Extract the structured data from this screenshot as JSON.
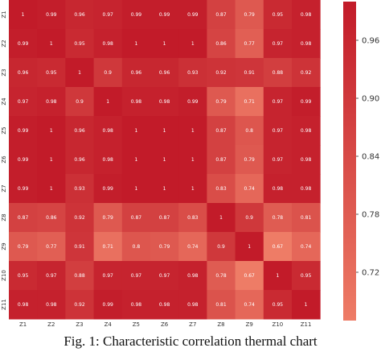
{
  "caption": "Fig. 1: Characteristic correlation thermal chart",
  "colors": {
    "low": "#ee7c66",
    "high": "#c21b29",
    "text_dark_bg": "#ffffff"
  },
  "chart_data": {
    "type": "heatmap",
    "title": "",
    "xlabel": "",
    "ylabel": "",
    "x_categories": [
      "Z1",
      "Z2",
      "Z3",
      "Z4",
      "Z5",
      "Z6",
      "Z7",
      "Z8",
      "Z9",
      "Z10",
      "Z11"
    ],
    "y_categories": [
      "Z1",
      "Z2",
      "Z3",
      "Z4",
      "Z5",
      "Z6",
      "Z7",
      "Z8",
      "Z9",
      "Z10",
      "Z11"
    ],
    "values": [
      [
        1,
        0.99,
        0.96,
        0.97,
        0.99,
        0.99,
        0.99,
        0.87,
        0.79,
        0.95,
        0.98
      ],
      [
        0.99,
        1,
        0.95,
        0.98,
        1,
        1,
        1,
        0.86,
        0.77,
        0.97,
        0.98
      ],
      [
        0.96,
        0.95,
        1,
        0.9,
        0.96,
        0.96,
        0.93,
        0.92,
        0.91,
        0.88,
        0.92
      ],
      [
        0.97,
        0.98,
        0.9,
        1,
        0.98,
        0.98,
        0.99,
        0.79,
        0.71,
        0.97,
        0.99
      ],
      [
        0.99,
        1,
        0.96,
        0.98,
        1,
        1,
        1,
        0.87,
        0.8,
        0.97,
        0.98
      ],
      [
        0.99,
        1,
        0.96,
        0.98,
        1,
        1,
        1,
        0.87,
        0.79,
        0.97,
        0.98
      ],
      [
        0.99,
        1,
        0.93,
        0.99,
        1,
        1,
        1,
        0.83,
        0.74,
        0.98,
        0.98
      ],
      [
        0.87,
        0.86,
        0.92,
        0.79,
        0.87,
        0.87,
        0.83,
        1,
        0.9,
        0.78,
        0.81
      ],
      [
        0.79,
        0.77,
        0.91,
        0.71,
        0.8,
        0.79,
        0.74,
        0.9,
        1,
        0.67,
        0.74
      ],
      [
        0.95,
        0.97,
        0.88,
        0.97,
        0.97,
        0.97,
        0.98,
        0.78,
        0.67,
        1,
        0.95
      ],
      [
        0.98,
        0.98,
        0.92,
        0.99,
        0.98,
        0.98,
        0.98,
        0.81,
        0.74,
        0.95,
        1
      ]
    ],
    "cell_labels": [
      [
        "1",
        "0.99",
        "0.96",
        "0.97",
        "0.99",
        "0.99",
        "0.99",
        "0.87",
        "0.79",
        "0.95",
        "0.98"
      ],
      [
        "0.99",
        "1",
        "0.95",
        "0.98",
        "1",
        "1",
        "1",
        "0.86",
        "0.77",
        "0.97",
        "0.98"
      ],
      [
        "0.96",
        "0.95",
        "1",
        "0.9",
        "0.96",
        "0.96",
        "0.93",
        "0.92",
        "0.91",
        "0.88",
        "0.92"
      ],
      [
        "0.97",
        "0.98",
        "0.9",
        "1",
        "0.98",
        "0.98",
        "0.99",
        "0.79",
        "0.71",
        "0.97",
        "0.99"
      ],
      [
        "0.99",
        "1",
        "0.96",
        "0.98",
        "1",
        "1",
        "1",
        "0.87",
        "0.8",
        "0.97",
        "0.98"
      ],
      [
        "0.99",
        "1",
        "0.96",
        "0.98",
        "1",
        "1",
        "1",
        "0.87",
        "0.79",
        "0.97",
        "0.98"
      ],
      [
        "0.99",
        "1",
        "0.93",
        "0.99",
        "1",
        "1",
        "1",
        "0.83",
        "0.74",
        "0.98",
        "0.98"
      ],
      [
        "0.87",
        "0.86",
        "0.92",
        "0.79",
        "0.87",
        "0.87",
        "0.83",
        "1",
        "0.9",
        "0.78",
        "0.81"
      ],
      [
        "0.79",
        "0.77",
        "0.91",
        "0.71",
        "0.8",
        "0.79",
        "0.74",
        "0.9",
        "1",
        "0.67",
        "0.74"
      ],
      [
        "0.95",
        "0.97",
        "0.88",
        "0.97",
        "0.97",
        "0.97",
        "0.98",
        "0.78",
        "0.67",
        "1",
        "0.95"
      ],
      [
        "0.98",
        "0.98",
        "0.92",
        "0.99",
        "0.98",
        "0.98",
        "0.98",
        "0.81",
        "0.74",
        "0.95",
        "1"
      ]
    ],
    "colorbar": {
      "range": [
        0.67,
        1.0
      ],
      "ticks": [
        0.72,
        0.78,
        0.84,
        0.9,
        0.96
      ],
      "tick_labels": [
        "0.72",
        "0.78",
        "0.84",
        "0.90",
        "0.96"
      ]
    },
    "grid": false,
    "legend": "colorbar-right"
  }
}
